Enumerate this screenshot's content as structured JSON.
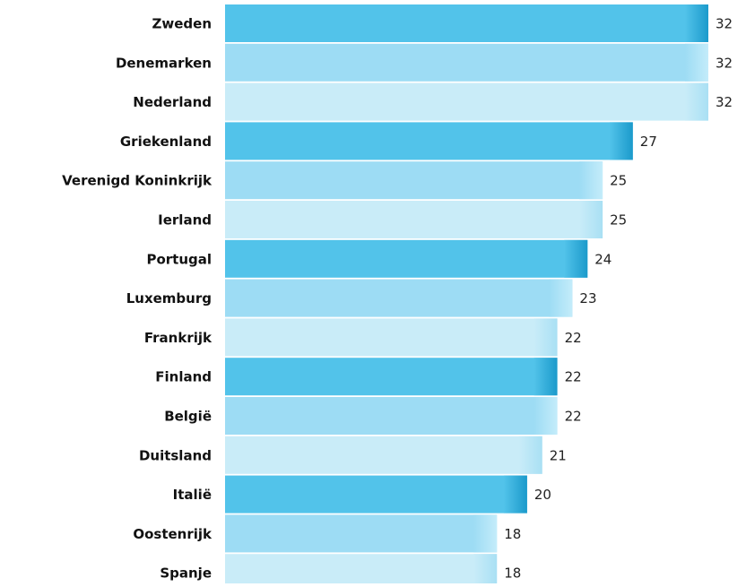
{
  "chart_data": {
    "type": "bar",
    "orientation": "horizontal",
    "categories": [
      "Zweden",
      "Denemarken",
      "Nederland",
      "Griekenland",
      "Verenigd Koninkrijk",
      "Ierland",
      "Portugal",
      "Luxemburg",
      "Frankrijk",
      "Finland",
      "België",
      "Duitsland",
      "Italië",
      "Oostenrijk",
      "Spanje"
    ],
    "values": [
      32,
      32,
      32,
      27,
      25,
      25,
      24,
      23,
      22,
      22,
      22,
      21,
      20,
      18,
      18
    ],
    "colors": [
      "#52c3ea",
      "#9ddcf4",
      "#c9ecf8"
    ]
  }
}
